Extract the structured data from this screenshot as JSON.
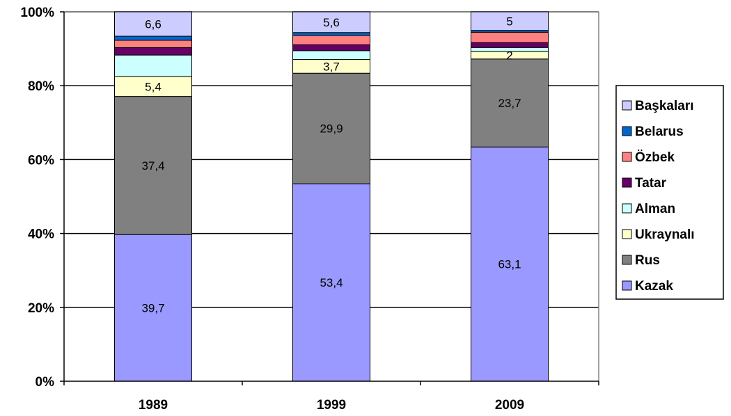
{
  "chart_data": {
    "type": "bar",
    "stacked": true,
    "normalized": true,
    "categories": [
      "1989",
      "1999",
      "2009"
    ],
    "ylim": [
      0,
      100
    ],
    "y_ticks": [
      "0%",
      "20%",
      "40%",
      "60%",
      "80%",
      "100%"
    ],
    "grid": true,
    "legend_position": "right",
    "series": [
      {
        "name": "Kazak",
        "color": "#9999ff",
        "values": [
          39.7,
          53.4,
          63.1
        ],
        "labels": [
          "39,7",
          "53,4",
          "63,1"
        ]
      },
      {
        "name": "Rus",
        "color": "#808080",
        "values": [
          37.4,
          29.9,
          23.7
        ],
        "labels": [
          "37,4",
          "29,9",
          "23,7"
        ]
      },
      {
        "name": "Ukraynalı",
        "color": "#ffffcc",
        "values": [
          5.4,
          3.7,
          2.0
        ],
        "labels": [
          "5,4",
          "3,7",
          "2"
        ]
      },
      {
        "name": "Alman",
        "color": "#ccffff",
        "values": [
          5.8,
          2.4,
          1.1
        ],
        "labels": [
          "",
          "",
          ""
        ]
      },
      {
        "name": "Tatar",
        "color": "#660066",
        "values": [
          2.0,
          1.6,
          1.3
        ],
        "labels": [
          "",
          "",
          ""
        ]
      },
      {
        "name": "Özbek",
        "color": "#ff8080",
        "values": [
          2.0,
          2.5,
          2.8
        ],
        "labels": [
          "",
          "",
          ""
        ]
      },
      {
        "name": "Belarus",
        "color": "#0066cc",
        "values": [
          1.1,
          0.8,
          0.5
        ],
        "labels": [
          "",
          "",
          ""
        ]
      },
      {
        "name": "Başkaları",
        "color": "#ccccff",
        "values": [
          6.6,
          5.6,
          5.0
        ],
        "labels": [
          "6,6",
          "5,6",
          "5"
        ]
      }
    ]
  }
}
